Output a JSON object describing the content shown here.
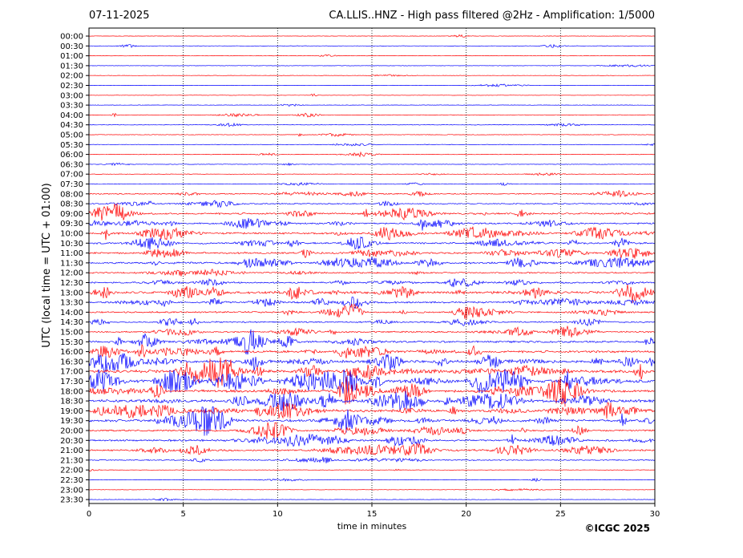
{
  "header": {
    "date": "07-11-2025",
    "title": "CA.LLIS..HNZ - High pass filtered @2Hz - Amplification: 1/5000"
  },
  "footer": {
    "copyright": "©ICGC 2025"
  },
  "colors": {
    "trace_a": "#ff0000",
    "trace_b": "#0000ff",
    "axes": "#000000",
    "grid": "#000000"
  },
  "chart_data": {
    "type": "line",
    "xlabel": "time in minutes",
    "ylabel": "UTC (local time = UTC + 01:00)",
    "xlim": [
      0,
      30
    ],
    "x_ticks": [
      0,
      5,
      10,
      15,
      20,
      25,
      30
    ],
    "grid": "vertical dotted lines at 5, 10, 15, 20, 25 minutes",
    "row_labels": [
      "00:00",
      "00:30",
      "01:00",
      "01:30",
      "02:00",
      "02:30",
      "03:00",
      "03:30",
      "04:00",
      "04:30",
      "05:00",
      "05:30",
      "06:00",
      "06:30",
      "07:00",
      "07:30",
      "08:00",
      "08:30",
      "09:00",
      "09:30",
      "10:00",
      "10:30",
      "11:00",
      "11:30",
      "12:00",
      "12:30",
      "13:00",
      "13:30",
      "14:00",
      "14:30",
      "15:00",
      "15:30",
      "16:00",
      "16:30",
      "17:00",
      "17:30",
      "18:00",
      "18:30",
      "19:00",
      "19:30",
      "20:00",
      "20:30",
      "21:00",
      "21:30",
      "22:00",
      "22:30",
      "23:00",
      "23:30"
    ],
    "row_colors": "alternating red (even rows) and blue (odd rows)",
    "activity_level": [
      0.2,
      0.3,
      0.2,
      0.2,
      0.2,
      0.2,
      0.2,
      0.2,
      0.5,
      0.4,
      0.4,
      0.3,
      0.5,
      0.3,
      0.3,
      0.6,
      1.2,
      1.3,
      2.2,
      2.0,
      2.6,
      2.2,
      2.2,
      2.6,
      1.6,
      2.0,
      3.2,
      2.4,
      2.0,
      1.8,
      1.8,
      2.4,
      3.0,
      3.6,
      4.2,
      4.0,
      3.6,
      3.8,
      3.4,
      3.4,
      2.2,
      2.6,
      2.4,
      1.2,
      0.3,
      0.3,
      0.2,
      0.2
    ]
  }
}
